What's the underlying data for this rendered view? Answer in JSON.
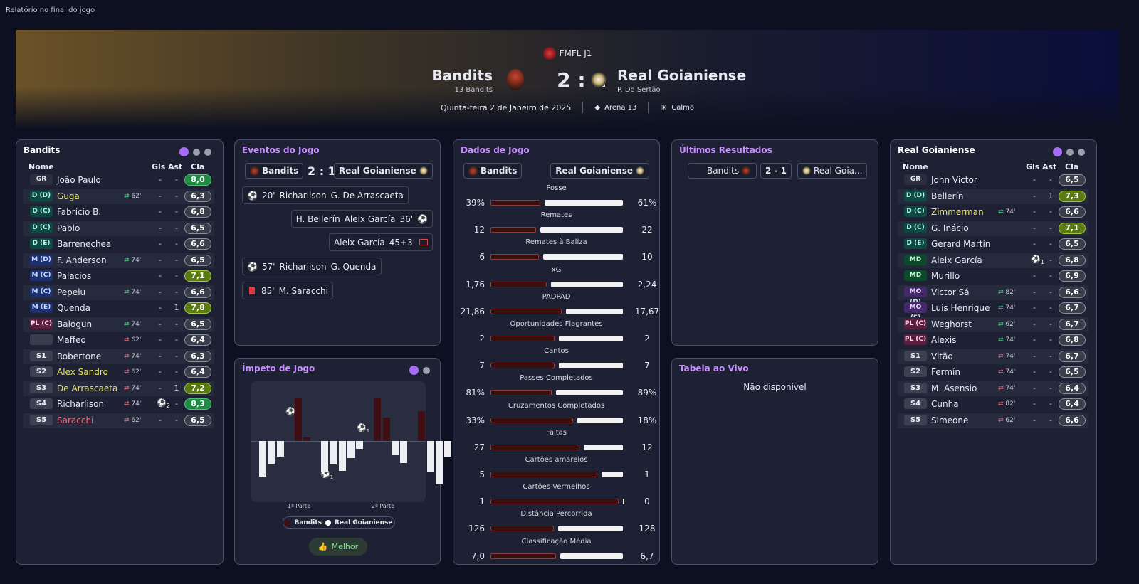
{
  "window": {
    "title": "Relatório no final do jogo"
  },
  "match": {
    "competition": "FMFL J1",
    "home": {
      "name": "Bandits",
      "sub": "13 Bandits"
    },
    "away": {
      "name": "Real Goianiense",
      "sub": "P. Do Sertão"
    },
    "score": "2 : 1",
    "date": "Quinta-feira 2 de Janeiro de 2025",
    "venue": "Arena 13",
    "weather": "Calmo"
  },
  "home_panel": {
    "title": "Bandits",
    "headers": {
      "name": "Nome",
      "goals": "Gls",
      "assists": "Ast",
      "rating": "Cla"
    },
    "players": [
      {
        "pos": "GR",
        "name": "João Paulo",
        "sub": "",
        "goals": "-",
        "assists": "-",
        "rating": "8,0"
      },
      {
        "pos": "D (D)",
        "name": "Guga",
        "sub": "62'",
        "goals": "-",
        "assists": "-",
        "rating": "6,3"
      },
      {
        "pos": "D (C)",
        "name": "Fabrício B.",
        "sub": "",
        "goals": "-",
        "assists": "-",
        "rating": "6,8"
      },
      {
        "pos": "D (C)",
        "name": "Pablo",
        "sub": "",
        "goals": "-",
        "assists": "-",
        "rating": "6,5"
      },
      {
        "pos": "D (E)",
        "name": "Barrenechea",
        "sub": "",
        "goals": "-",
        "assists": "-",
        "rating": "6,6"
      },
      {
        "pos": "M (D)",
        "name": "F. Anderson",
        "sub": "74'",
        "goals": "-",
        "assists": "-",
        "rating": "6,5"
      },
      {
        "pos": "M (C)",
        "name": "Palacios",
        "sub": "",
        "goals": "-",
        "assists": "-",
        "rating": "7,1"
      },
      {
        "pos": "M (C)",
        "name": "Pepelu",
        "sub": "74'",
        "goals": "-",
        "assists": "-",
        "rating": "6,6"
      },
      {
        "pos": "M (E)",
        "name": "Quenda",
        "sub": "",
        "goals": "-",
        "assists": "1",
        "rating": "7,8"
      },
      {
        "pos": "PL (C)",
        "name": "Balogun",
        "sub": "74'",
        "goals": "-",
        "assists": "-",
        "rating": "6,5"
      },
      {
        "pos": "",
        "name": "Maffeo",
        "sub": "62'",
        "goals": "-",
        "assists": "-",
        "rating": "6,4"
      },
      {
        "pos": "S1",
        "name": "Robertone",
        "sub": "74'",
        "goals": "-",
        "assists": "-",
        "rating": "6,3"
      },
      {
        "pos": "S2",
        "name": "Alex Sandro",
        "sub": "62'",
        "goals": "-",
        "assists": "-",
        "rating": "6,4"
      },
      {
        "pos": "S3",
        "name": "De Arrascaeta",
        "sub": "74'",
        "goals": "-",
        "assists": "1",
        "rating": "7,2"
      },
      {
        "pos": "S4",
        "name": "Richarlison",
        "sub": "74'",
        "goals": "2",
        "assists": "-",
        "rating": "8,3"
      },
      {
        "pos": "S5",
        "name": "Saracchi",
        "sub": "62'",
        "goals": "-",
        "assists": "-",
        "rating": "6,5"
      }
    ]
  },
  "away_panel": {
    "title": "Real Goianiense",
    "headers": {
      "name": "Nome",
      "goals": "Gls",
      "assists": "Ast",
      "rating": "Cla"
    },
    "players": [
      {
        "pos": "GR",
        "name": "John Victor",
        "sub": "",
        "goals": "-",
        "assists": "-",
        "rating": "6,5"
      },
      {
        "pos": "D (D)",
        "name": "Bellerín",
        "sub": "",
        "goals": "-",
        "assists": "1",
        "rating": "7,3"
      },
      {
        "pos": "D (C)",
        "name": "Zimmerman",
        "sub": "74'",
        "goals": "-",
        "assists": "-",
        "rating": "6,6"
      },
      {
        "pos": "D (C)",
        "name": "G. Inácio",
        "sub": "",
        "goals": "-",
        "assists": "-",
        "rating": "7,1"
      },
      {
        "pos": "D (E)",
        "name": "Gerard Martín",
        "sub": "",
        "goals": "-",
        "assists": "-",
        "rating": "6,5"
      },
      {
        "pos": "MD",
        "name": "Aleix García",
        "sub": "",
        "goals": "1",
        "assists": "-",
        "rating": "6,8"
      },
      {
        "pos": "MD",
        "name": "Murillo",
        "sub": "",
        "goals": "-",
        "assists": "-",
        "rating": "6,9"
      },
      {
        "pos": "MO (D)",
        "name": "Victor Sá",
        "sub": "82'",
        "goals": "-",
        "assists": "-",
        "rating": "6,6"
      },
      {
        "pos": "MO (E)",
        "name": "Luis Henrique",
        "sub": "74'",
        "goals": "-",
        "assists": "-",
        "rating": "6,7"
      },
      {
        "pos": "PL (C)",
        "name": "Weghorst",
        "sub": "62'",
        "goals": "-",
        "assists": "-",
        "rating": "6,7"
      },
      {
        "pos": "PL (C)",
        "name": "Alexis",
        "sub": "74'",
        "goals": "-",
        "assists": "-",
        "rating": "6,8"
      },
      {
        "pos": "S1",
        "name": "Vitão",
        "sub": "74'",
        "goals": "-",
        "assists": "-",
        "rating": "6,7"
      },
      {
        "pos": "S2",
        "name": "Fermín",
        "sub": "74'",
        "goals": "-",
        "assists": "-",
        "rating": "6,5"
      },
      {
        "pos": "S3",
        "name": "M. Asensio",
        "sub": "74'",
        "goals": "-",
        "assists": "-",
        "rating": "6,4"
      },
      {
        "pos": "S4",
        "name": "Cunha",
        "sub": "82'",
        "goals": "-",
        "assists": "-",
        "rating": "6,4"
      },
      {
        "pos": "S5",
        "name": "Simeone",
        "sub": "62'",
        "goals": "-",
        "assists": "-",
        "rating": "6,6"
      }
    ]
  },
  "events": {
    "title": "Eventos do Jogo",
    "home": "Bandits",
    "away": "Real Goianiense",
    "score": "2 : 1",
    "items": [
      {
        "minute": "20'",
        "text": "Richarlison",
        "extra": "G. De Arrascaeta"
      },
      {
        "minute": "36'",
        "text": "Aleix García",
        "extra": "H. Bellerín"
      },
      {
        "minute": "45+3'",
        "text": "Aleix García",
        "extra": ""
      },
      {
        "minute": "57'",
        "text": "Richarlison",
        "extra": "G. Quenda"
      },
      {
        "minute": "85'",
        "text": "M. Saracchi",
        "extra": ""
      }
    ]
  },
  "stats": {
    "title": "Dados de Jogo",
    "home": "Bandits",
    "away": "Real Goianiense",
    "rows": [
      {
        "label": "Posse",
        "home": "39%",
        "away": "61%",
        "hv": 39,
        "av": 61
      },
      {
        "label": "Remates",
        "home": "12",
        "away": "22",
        "hv": 12,
        "av": 22
      },
      {
        "label": "Remates à Baliza",
        "home": "6",
        "away": "10",
        "hv": 6,
        "av": 10
      },
      {
        "label": "xG",
        "home": "1,76",
        "away": "2,24",
        "hv": 1.76,
        "av": 2.24
      },
      {
        "label": "PADPAD",
        "home": "21,86",
        "away": "17,67",
        "hv": 21.86,
        "av": 17.67
      },
      {
        "label": "Oportunidades Flagrantes",
        "home": "2",
        "away": "2",
        "hv": 2,
        "av": 2
      },
      {
        "label": "Cantos",
        "home": "7",
        "away": "7",
        "hv": 7,
        "av": 7
      },
      {
        "label": "Passes Completados",
        "home": "81%",
        "away": "89%",
        "hv": 81,
        "av": 89
      },
      {
        "label": "Cruzamentos Completados",
        "home": "33%",
        "away": "18%",
        "hv": 33,
        "av": 18
      },
      {
        "label": "Faltas",
        "home": "27",
        "away": "12",
        "hv": 27,
        "av": 12
      },
      {
        "label": "Cartões amarelos",
        "home": "5",
        "away": "1",
        "hv": 5,
        "av": 1
      },
      {
        "label": "Cartões Vermelhos",
        "home": "1",
        "away": "0",
        "hv": 1,
        "av": 0
      },
      {
        "label": "Distância Percorrida",
        "home": "126",
        "away": "128",
        "hv": 126,
        "av": 128
      },
      {
        "label": "Classificação Média",
        "home": "7,0",
        "away": "6,7",
        "hv": 7.0,
        "av": 6.7
      }
    ]
  },
  "momentum": {
    "title": "Ímpeto de Jogo",
    "first_half": "1ª Parte",
    "second_half": "2ª Parte",
    "legend_home": "Bandits",
    "legend_away": "Real Goianiense",
    "button": "Melhor",
    "bars": [
      -0.45,
      -0.3,
      -0.2,
      0,
      0.55,
      0.05,
      0,
      -0.4,
      -0.3,
      -0.38,
      -0.22,
      -0.1,
      0,
      0.55,
      0.3,
      -0.18,
      -0.28,
      0,
      0.38,
      -0.4,
      -0.55,
      -0.2,
      -0.35,
      0,
      0
    ],
    "home_color": "#3f0e12",
    "away_color": "#eceef2"
  },
  "results": {
    "title": "Últimos Resultados",
    "home": "Bandits",
    "score": "2 - 1",
    "away": "Real Goia..."
  },
  "live_table": {
    "title": "Tabela ao Vivo",
    "message": "Não disponível"
  },
  "colors": {
    "accent": "#a66cf5",
    "panel": "#1e2133",
    "bg": "#0c1020"
  }
}
